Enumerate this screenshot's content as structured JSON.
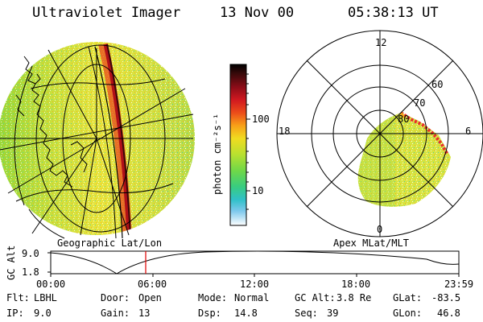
{
  "header": {
    "title": "Ultraviolet Imager",
    "date": "13 Nov 00",
    "time": "05:38:13 UT"
  },
  "colorbar": {
    "unit_label": "photon cm⁻²s⁻¹",
    "ticks": [
      "100",
      "10"
    ],
    "colors": [
      "#000000",
      "#3b0a0a",
      "#7a0a14",
      "#c0101e",
      "#e8301a",
      "#f4781a",
      "#f8b418",
      "#e8e020",
      "#b8e030",
      "#78d840",
      "#48d060",
      "#30c8a8",
      "#40b8e0",
      "#a8d8f0",
      "#ffffff"
    ]
  },
  "left_panel": {
    "label": "Geographic Lat/Lon"
  },
  "right_panel": {
    "label": "Apex MLat/MLT",
    "mlt_labels": {
      "top": "12",
      "left": "18",
      "right": "6",
      "bottom": "0"
    },
    "lat_labels": [
      "60",
      "70",
      "80"
    ]
  },
  "altitude_plot": {
    "ylabel": "GC Alt",
    "yticks": [
      "9.0",
      "1.8"
    ],
    "xticks": [
      "00:00",
      "06:00",
      "12:00",
      "18:00",
      "23:59"
    ],
    "marker_time": "05:38"
  },
  "info": {
    "flt_label": "Flt:",
    "flt_value": "LBHL",
    "ip_label": "IP:",
    "ip_value": "9.0",
    "door_label": "Door:",
    "door_value": "Open",
    "gain_label": "Gain:",
    "gain_value": "13",
    "mode_label": "Mode:",
    "mode_value": "Normal",
    "dsp_label": "Dsp:",
    "dsp_value": "14.8",
    "gcalt_label": "GC Alt:",
    "gcalt_value": "3.8 Re",
    "seq_label": "Seq:",
    "seq_value": "39",
    "glat_label": "GLat:",
    "glat_value": "-83.5",
    "glon_label": "GLon:",
    "glon_value": "46.8"
  }
}
